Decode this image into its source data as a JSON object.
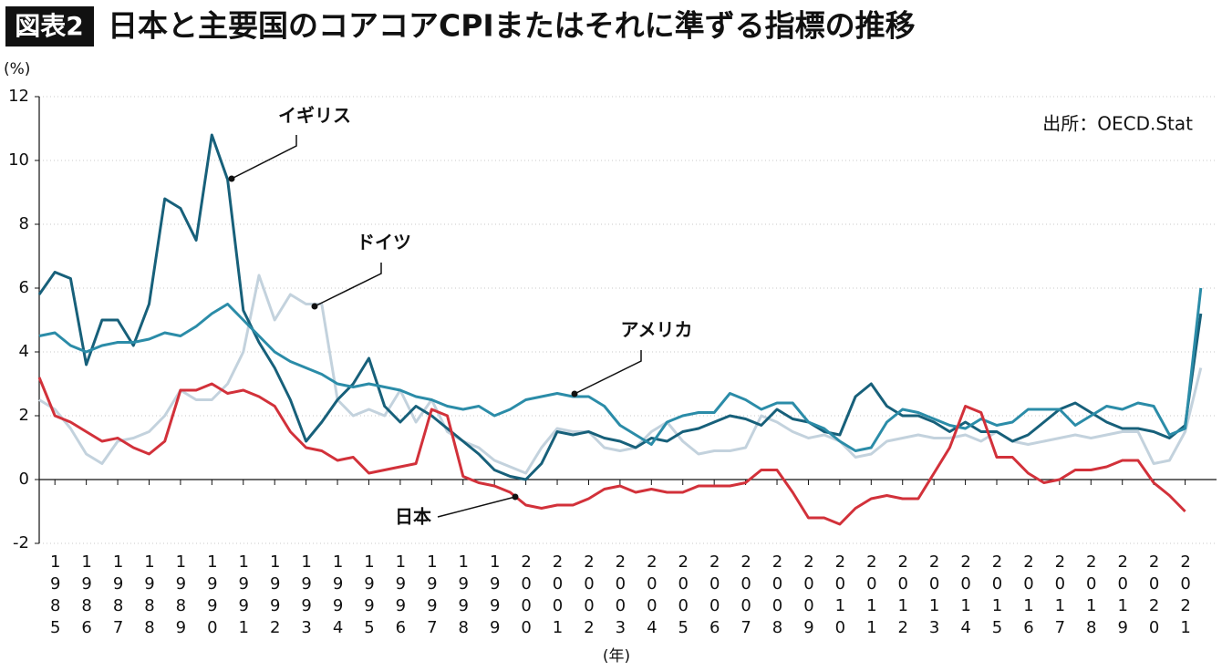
{
  "chart_data": {
    "type": "line",
    "badge": "図表2",
    "title": "日本と主要国のコアコアCPIまたはそれに準ずる指標の推移",
    "y_label": "(%)",
    "x_label": "(年)",
    "source": "出所：OECD.Stat",
    "grid": true,
    "xlim": [
      1984.5,
      2022.0
    ],
    "ylim": [
      -2,
      12
    ],
    "yticks": [
      -2,
      0,
      2,
      4,
      6,
      8,
      10,
      12
    ],
    "xticks": [
      1985,
      1986,
      1987,
      1988,
      1989,
      1990,
      1991,
      1992,
      1993,
      1994,
      1995,
      1996,
      1997,
      1998,
      1999,
      2000,
      2001,
      2002,
      2003,
      2004,
      2005,
      2006,
      2007,
      2008,
      2009,
      2010,
      2011,
      2012,
      2013,
      2014,
      2015,
      2016,
      2017,
      2018,
      2019,
      2020,
      2021
    ],
    "x": [
      1984.5,
      1985,
      1985.5,
      1986,
      1986.5,
      1987,
      1987.5,
      1988,
      1988.5,
      1989,
      1989.5,
      1990,
      1990.5,
      1991,
      1991.5,
      1992,
      1992.5,
      1993,
      1993.5,
      1994,
      1994.5,
      1995,
      1995.5,
      1996,
      1996.5,
      1997,
      1997.5,
      1998,
      1998.5,
      1999,
      1999.5,
      2000,
      2000.5,
      2001,
      2001.5,
      2002,
      2002.5,
      2003,
      2003.5,
      2004,
      2004.5,
      2005,
      2005.5,
      2006,
      2006.5,
      2007,
      2007.5,
      2008,
      2008.5,
      2009,
      2009.5,
      2010,
      2010.5,
      2011,
      2011.5,
      2012,
      2012.5,
      2013,
      2013.5,
      2014,
      2014.5,
      2015,
      2015.5,
      2016,
      2016.5,
      2017,
      2017.5,
      2018,
      2018.5,
      2019,
      2019.5,
      2020,
      2020.5,
      2021,
      2021.5
    ],
    "series": [
      {
        "name": "ドイツ",
        "color": "#c3d2dd",
        "values": [
          2.5,
          2.2,
          1.6,
          0.8,
          0.5,
          1.2,
          1.3,
          1.5,
          2.0,
          2.8,
          2.5,
          2.5,
          3.0,
          4.0,
          6.4,
          5.0,
          5.8,
          5.5,
          5.5,
          2.5,
          2.0,
          2.2,
          2.0,
          2.8,
          1.8,
          2.5,
          1.5,
          1.2,
          1.0,
          0.6,
          0.4,
          0.2,
          1.0,
          1.6,
          1.5,
          1.5,
          1.0,
          0.9,
          1.0,
          1.5,
          1.8,
          1.2,
          0.8,
          0.9,
          0.9,
          1.0,
          2.0,
          1.8,
          1.5,
          1.3,
          1.4,
          1.2,
          0.7,
          0.8,
          1.2,
          1.3,
          1.4,
          1.3,
          1.3,
          1.4,
          1.2,
          1.5,
          1.2,
          1.1,
          1.2,
          1.3,
          1.4,
          1.3,
          1.4,
          1.5,
          1.5,
          0.5,
          0.6,
          1.5,
          3.5
        ]
      },
      {
        "name": "イギリス",
        "color": "#17607a",
        "values": [
          5.8,
          6.5,
          6.3,
          3.6,
          5.0,
          5.0,
          4.2,
          5.5,
          8.8,
          8.5,
          7.5,
          10.8,
          9.4,
          5.3,
          4.3,
          3.5,
          2.5,
          1.2,
          1.8,
          2.5,
          3.0,
          3.8,
          2.3,
          1.8,
          2.3,
          2.0,
          1.6,
          1.2,
          0.8,
          0.3,
          0.1,
          0.0,
          0.5,
          1.5,
          1.4,
          1.5,
          1.3,
          1.2,
          1.0,
          1.3,
          1.2,
          1.5,
          1.6,
          1.8,
          2.0,
          1.9,
          1.7,
          2.2,
          1.9,
          1.8,
          1.5,
          1.4,
          2.6,
          3.0,
          2.3,
          2.0,
          2.0,
          1.8,
          1.5,
          1.8,
          1.5,
          1.5,
          1.2,
          1.4,
          1.8,
          2.2,
          2.4,
          2.1,
          1.8,
          1.6,
          1.6,
          1.5,
          1.3,
          1.7,
          5.2
        ]
      },
      {
        "name": "アメリカ",
        "color": "#2b8ca8",
        "values": [
          4.5,
          4.6,
          4.2,
          4.0,
          4.2,
          4.3,
          4.3,
          4.4,
          4.6,
          4.5,
          4.8,
          5.2,
          5.5,
          5.0,
          4.5,
          4.0,
          3.7,
          3.5,
          3.3,
          3.0,
          2.9,
          3.0,
          2.9,
          2.8,
          2.6,
          2.5,
          2.3,
          2.2,
          2.3,
          2.0,
          2.2,
          2.5,
          2.6,
          2.7,
          2.6,
          2.6,
          2.3,
          1.7,
          1.4,
          1.1,
          1.8,
          2.0,
          2.1,
          2.1,
          2.7,
          2.5,
          2.2,
          2.4,
          2.4,
          1.8,
          1.6,
          1.2,
          0.9,
          1.0,
          1.8,
          2.2,
          2.1,
          1.9,
          1.7,
          1.6,
          1.9,
          1.7,
          1.8,
          2.2,
          2.2,
          2.2,
          1.7,
          2.0,
          2.3,
          2.2,
          2.4,
          2.3,
          1.4,
          1.6,
          6.0
        ]
      },
      {
        "name": "日本",
        "color": "#d2313a",
        "values": [
          3.2,
          2.0,
          1.8,
          1.5,
          1.2,
          1.3,
          1.0,
          0.8,
          1.2,
          2.8,
          2.8,
          3.0,
          2.7,
          2.8,
          2.6,
          2.3,
          1.5,
          1.0,
          0.9,
          0.6,
          0.7,
          0.2,
          0.3,
          0.4,
          0.5,
          2.2,
          2.0,
          0.1,
          -0.1,
          -0.2,
          -0.4,
          -0.8,
          -0.9,
          -0.8,
          -0.8,
          -0.6,
          -0.3,
          -0.2,
          -0.4,
          -0.3,
          -0.4,
          -0.4,
          -0.2,
          -0.2,
          -0.2,
          -0.1,
          0.3,
          0.3,
          -0.4,
          -1.2,
          -1.2,
          -1.4,
          -0.9,
          -0.6,
          -0.5,
          -0.6,
          -0.6,
          0.2,
          1.0,
          2.3,
          2.1,
          0.7,
          0.7,
          0.2,
          -0.1,
          0.0,
          0.3,
          0.3,
          0.4,
          0.6,
          0.6,
          -0.1,
          -0.5,
          -1.0,
          null
        ]
      }
    ]
  }
}
